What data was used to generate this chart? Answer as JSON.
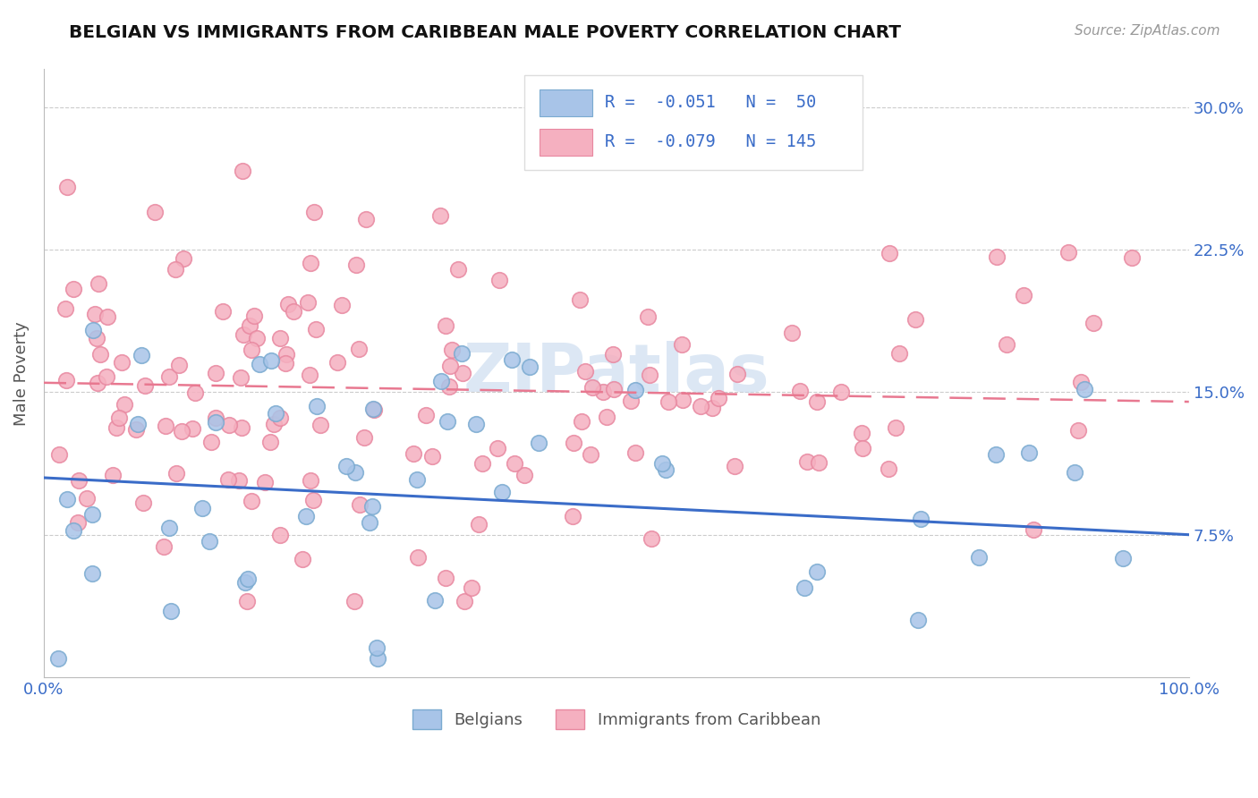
{
  "title": "BELGIAN VS IMMIGRANTS FROM CARIBBEAN MALE POVERTY CORRELATION CHART",
  "source": "Source: ZipAtlas.com",
  "ylabel": "Male Poverty",
  "xlim": [
    0,
    1.0
  ],
  "ylim": [
    0,
    0.32
  ],
  "xticks": [
    0.0,
    1.0
  ],
  "xticklabels": [
    "0.0%",
    "100.0%"
  ],
  "yticks": [
    0.075,
    0.15,
    0.225,
    0.3
  ],
  "yticklabels": [
    "7.5%",
    "15.0%",
    "22.5%",
    "30.0%"
  ],
  "belgian_color": "#a8c4e8",
  "caribbean_color": "#f5b0c0",
  "belgian_edge_color": "#7aaad0",
  "caribbean_edge_color": "#e888a0",
  "belgian_line_color": "#3a6cc8",
  "caribbean_line_color": "#e87890",
  "r_belgian": -0.051,
  "n_belgian": 50,
  "r_caribbean": -0.079,
  "n_caribbean": 145,
  "belgian_intercept": 0.105,
  "belgian_slope": -0.03,
  "caribbean_intercept": 0.155,
  "caribbean_slope": -0.01,
  "watermark": "ZIPatlas",
  "title_color": "#111111",
  "axis_label_color": "#555555",
  "tick_color": "#3a6cc8",
  "background_color": "#ffffff",
  "grid_color": "#cccccc",
  "legend_text_color": "#3a6cc8",
  "seed": 99
}
